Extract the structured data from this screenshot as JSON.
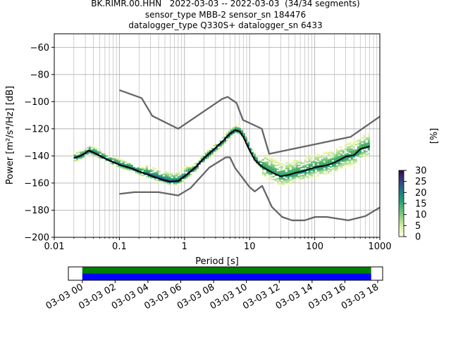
{
  "title": {
    "line1": "BK.RIMR.00.HHN   2022-03-03 -- 2022-03-03  (34/34 segments)",
    "line2": "sensor_type MBB-2 sensor_sn 184476",
    "line3": "datalogger_type Q330S+ datalogger_sn 6433"
  },
  "chart_data": [
    {
      "type": "line",
      "title": "BK.RIMR.00.HHN   2022-03-03 -- 2022-03-03  (34/34 segments)",
      "xlabel": "Period [s]",
      "ylabel": "Power [m²/s⁴/Hz] [dB]",
      "xscale": "log",
      "xlim": [
        0.01,
        1000
      ],
      "ylim": [
        -200,
        -50
      ],
      "x_ticks": [
        "0.01",
        "0.1",
        "1",
        "10",
        "100",
        "1000"
      ],
      "y_ticks": [
        "−200",
        "−180",
        "−160",
        "−140",
        "−120",
        "−100",
        "−80",
        "−60"
      ],
      "grid": true,
      "series": [
        {
          "role": "median",
          "color": "#000000",
          "points": [
            [
              0.02,
              -141.5
            ],
            [
              0.025,
              -140
            ],
            [
              0.03,
              -138
            ],
            [
              0.033,
              -136
            ],
            [
              0.04,
              -137.5
            ],
            [
              0.05,
              -140
            ],
            [
              0.07,
              -143.5
            ],
            [
              0.1,
              -146.5
            ],
            [
              0.15,
              -149
            ],
            [
              0.2,
              -151.5
            ],
            [
              0.3,
              -154.5
            ],
            [
              0.45,
              -157.5
            ],
            [
              0.6,
              -159
            ],
            [
              0.8,
              -158.5
            ],
            [
              1.0,
              -155
            ],
            [
              1.5,
              -148
            ],
            [
              2.0,
              -141.5
            ],
            [
              3.0,
              -134
            ],
            [
              4.0,
              -128.5
            ],
            [
              5.0,
              -123.5
            ],
            [
              6.0,
              -121
            ],
            [
              7.0,
              -122
            ],
            [
              8.0,
              -126
            ],
            [
              10,
              -136
            ],
            [
              12,
              -143
            ],
            [
              15,
              -147.5
            ],
            [
              20,
              -151
            ],
            [
              25,
              -153.5
            ],
            [
              30,
              -155
            ],
            [
              40,
              -154
            ],
            [
              50,
              -152.5
            ],
            [
              70,
              -151
            ],
            [
              100,
              -148.5
            ],
            [
              150,
              -147
            ],
            [
              200,
              -145
            ],
            [
              300,
              -140.5
            ],
            [
              400,
              -139.5
            ],
            [
              500,
              -135
            ],
            [
              700,
              -133
            ]
          ]
        },
        {
          "role": "NHNM (high noise model)",
          "color": "#666666",
          "points": [
            [
              0.1,
              -91.5
            ],
            [
              0.22,
              -97.4
            ],
            [
              0.32,
              -110.5
            ],
            [
              0.8,
              -120
            ],
            [
              3.8,
              -98
            ],
            [
              4.6,
              -96.5
            ],
            [
              6.3,
              -101
            ],
            [
              7.9,
              -113.5
            ],
            [
              15.4,
              -120
            ],
            [
              20,
              -138.5
            ],
            [
              354.8,
              -126
            ],
            [
              1000,
              -111
            ]
          ]
        },
        {
          "role": "NLNM (low noise model)",
          "color": "#666666",
          "points": [
            [
              0.1,
              -168
            ],
            [
              0.17,
              -166.7
            ],
            [
              0.4,
              -166.7
            ],
            [
              0.8,
              -169.2
            ],
            [
              1.24,
              -163.7
            ],
            [
              2.4,
              -148.6
            ],
            [
              4.3,
              -141.1
            ],
            [
              5.0,
              -141.1
            ],
            [
              6.0,
              -149
            ],
            [
              10,
              -163
            ],
            [
              12,
              -166.2
            ],
            [
              15.6,
              -162.1
            ],
            [
              21.9,
              -177.5
            ],
            [
              31.6,
              -185
            ],
            [
              45,
              -187.5
            ],
            [
              70,
              -187.5
            ],
            [
              101,
              -185
            ],
            [
              154,
              -185
            ],
            [
              328,
              -187.5
            ],
            [
              600,
              -184.4
            ],
            [
              1000,
              -178
            ]
          ]
        }
      ],
      "colorbar": {
        "label": "[%]",
        "ticks": [
          "0",
          "5",
          "10",
          "15",
          "20",
          "25",
          "30"
        ],
        "min": 0,
        "max": 30
      }
    },
    {
      "type": "timeline",
      "x_ticks": [
        "03-03 00",
        "03-03 02",
        "03-03 04",
        "03-03 06",
        "03-03 08",
        "03-03 10",
        "03-03 12",
        "03-03 14",
        "03-03 16",
        "03-03 18"
      ],
      "coverage": [
        {
          "from_hours": 0,
          "to_hours": 17.6,
          "color": "#008000"
        },
        {
          "from_hours": 0,
          "to_hours": 17.6,
          "color": "#0000ff"
        }
      ],
      "range_hours": [
        -0.85,
        18.3
      ]
    }
  ],
  "colors": {
    "median": "#000000",
    "noise_models": "#666666",
    "grid": "#b0b0b0",
    "coverage_green": "#008000",
    "coverage_blue": "#0000ff"
  }
}
